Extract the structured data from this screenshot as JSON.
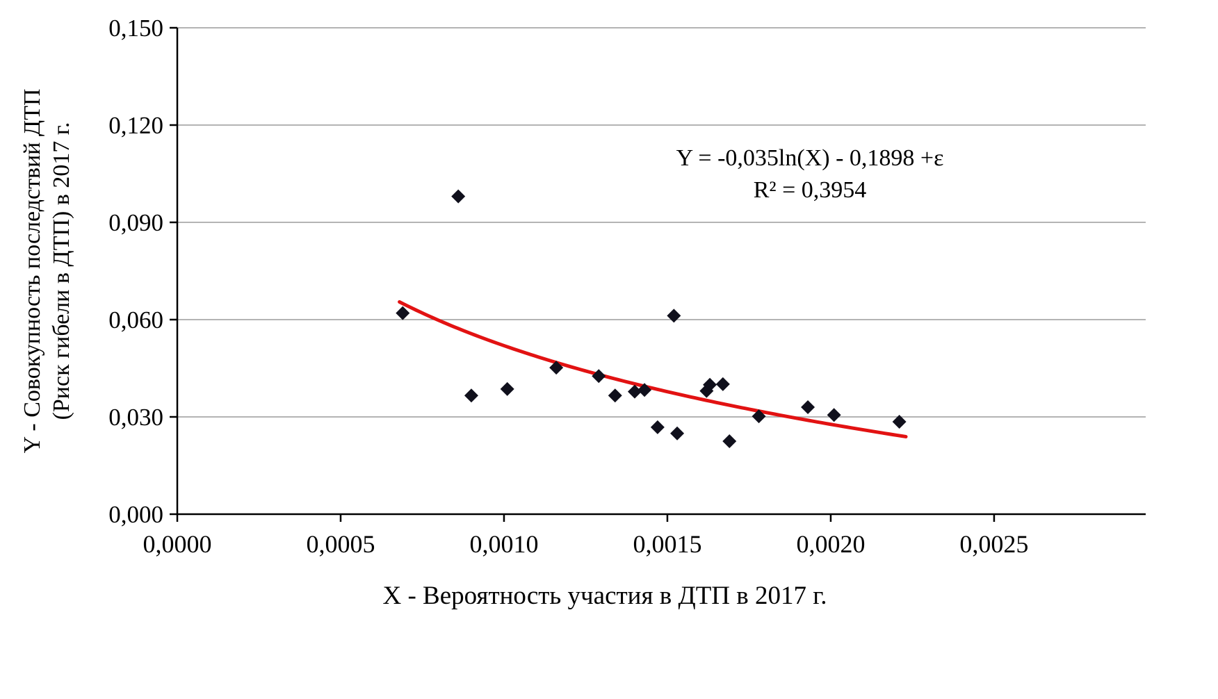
{
  "chart_data": {
    "type": "scatter",
    "title": "",
    "xlabel": "X - Вероятность участия в ДТП в 2017  г.",
    "ylabel_lines": [
      "Y - Совокупность последствий ДТП",
      "(Риск гибели в ДТП) в 2017 г."
    ],
    "annotation": {
      "line1": "Y = -0,035ln(X)  - 0,1898 +ε",
      "line2": "R² = 0,3954"
    },
    "xlim": [
      0,
      0.002964
    ],
    "ylim": [
      0,
      0.15
    ],
    "x_ticks": {
      "values": [
        0,
        0.0005,
        0.001,
        0.0015,
        0.002,
        0.0025
      ],
      "labels": [
        "0,0000",
        "0,0005",
        "0,0010",
        "0,0015",
        "0,0020",
        "0,0025"
      ]
    },
    "y_ticks": {
      "values": [
        0,
        0.03,
        0.06,
        0.09,
        0.12,
        0.15
      ],
      "labels": [
        "0,000",
        "0,030",
        "0,060",
        "0,090",
        "0,120",
        "0,150"
      ]
    },
    "grid": true,
    "legend": "none",
    "points": [
      [
        0.00069,
        0.062
      ],
      [
        0.00086,
        0.098
      ],
      [
        0.0009,
        0.0366
      ],
      [
        0.00101,
        0.0386
      ],
      [
        0.00116,
        0.0452
      ],
      [
        0.00129,
        0.0426
      ],
      [
        0.00134,
        0.0366
      ],
      [
        0.0014,
        0.0378
      ],
      [
        0.00143,
        0.0383
      ],
      [
        0.00147,
        0.0268
      ],
      [
        0.00152,
        0.0612
      ],
      [
        0.00153,
        0.0249
      ],
      [
        0.00162,
        0.038
      ],
      [
        0.00163,
        0.0399
      ],
      [
        0.00167,
        0.0401
      ],
      [
        0.00169,
        0.0225
      ],
      [
        0.00178,
        0.0302
      ],
      [
        0.00193,
        0.033
      ],
      [
        0.00201,
        0.0306
      ],
      [
        0.00221,
        0.0285
      ]
    ],
    "trendline": {
      "form": "Y = a*ln(X) + b",
      "a": -0.035,
      "b": -0.1898,
      "r_squared": 0.3954,
      "x_start": 0.00068,
      "x_end": 0.00223,
      "color": "#e21212"
    },
    "point_color": "#10101c",
    "grid_color": "#9b9b9b",
    "axis_color": "#000000"
  }
}
